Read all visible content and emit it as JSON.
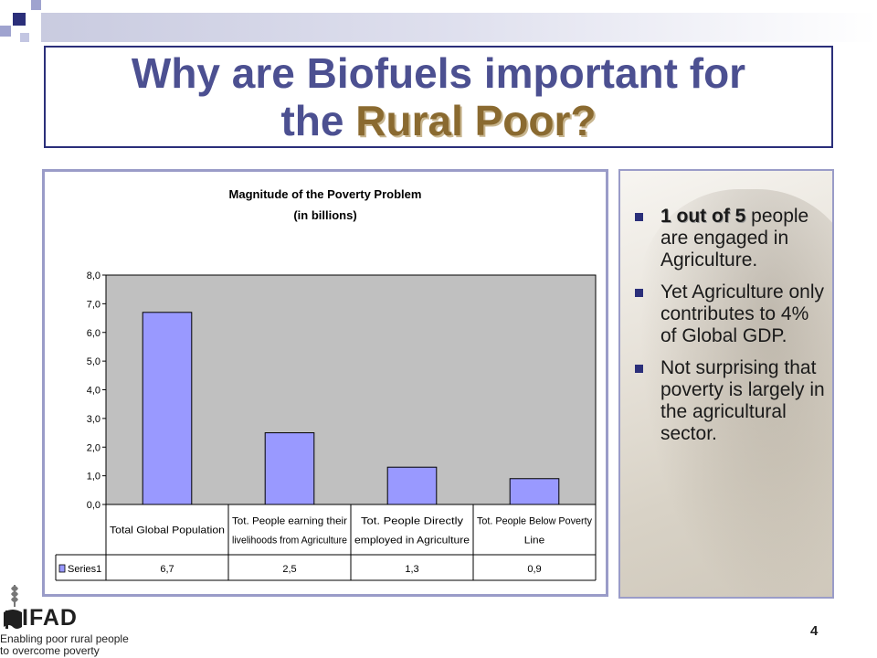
{
  "slide": {
    "title_line1": "Why are Biofuels important for",
    "title_line2_plain": "the ",
    "title_line2_emph": "Rural Poor?",
    "page_number": "4"
  },
  "bullets": [
    {
      "emph": "1 out of 5",
      "text": " people are engaged in Agriculture."
    },
    {
      "emph": "",
      "text": "Yet Agriculture only contributes to 4% of Global GDP."
    },
    {
      "emph": "",
      "text": "Not surprising that poverty is largely in the agricultural sector."
    }
  ],
  "logo": {
    "name": "IFAD",
    "tagline_line1": "Enabling poor rural people",
    "tagline_line2": "to overcome poverty"
  },
  "colors": {
    "title": "#4c5091",
    "title_emphasis": "#8a6a30",
    "bar_fill": "#9999ff",
    "plot_bg": "#c0c0c0",
    "frame_border": "#2b2f7a"
  },
  "chart_data": {
    "type": "bar",
    "title_line1": "Magnitude of the Poverty Problem",
    "title_line2": "(in billions)",
    "categories": [
      [
        "Total Global Population"
      ],
      [
        "Tot. People earning their",
        "livelihoods from Agriculture"
      ],
      [
        "Tot. People Directly",
        "employed in Agriculture"
      ],
      [
        "Tot. People Below Poverty",
        "Line"
      ]
    ],
    "series": [
      {
        "name": "Series1",
        "values": [
          6.7,
          2.5,
          1.3,
          0.9
        ],
        "value_labels": [
          "6,7",
          "2,5",
          "1,3",
          "0,9"
        ]
      }
    ],
    "ylim": [
      0,
      8
    ],
    "y_ticks": [
      "0,0",
      "1,0",
      "2,0",
      "3,0",
      "4,0",
      "5,0",
      "6,0",
      "7,0",
      "8,0"
    ],
    "grid": false,
    "legend": "data-table-left",
    "data_table": true
  }
}
